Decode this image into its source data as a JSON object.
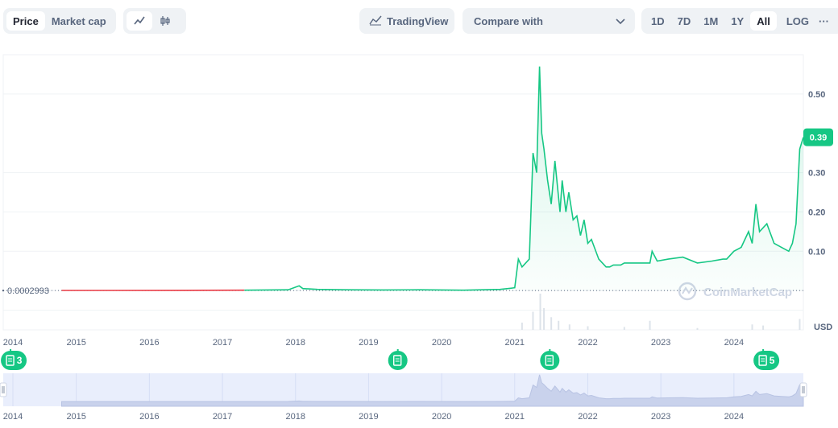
{
  "toolbar": {
    "metric_tabs": [
      "Price",
      "Market cap"
    ],
    "active_metric": "Price",
    "chart_style_icons": [
      "line-chart-icon",
      "candlestick-icon"
    ],
    "tradingview_label": "TradingView",
    "compare_label": "Compare with",
    "range_tabs": [
      "1D",
      "7D",
      "1M",
      "1Y",
      "All"
    ],
    "active_range": "All",
    "log_label": "LOG",
    "more_label": "···"
  },
  "colors": {
    "line": "#16c784",
    "early_line": "#ea3943",
    "price_badge": "#16c784",
    "navigator_bg": "#e9eefc",
    "grid": "#eff2f5"
  },
  "chart_data": {
    "type": "area",
    "currency": "USD",
    "current_price_label": "0.39",
    "start_price_label": "0.0002993",
    "watermark": "CoinMarketCap",
    "y_ticks": [
      "0.10",
      "0.20",
      "0.30",
      "0.50"
    ],
    "x_ticks": [
      "2014",
      "2015",
      "2016",
      "2017",
      "2018",
      "2019",
      "2020",
      "2021",
      "2022",
      "2023",
      "2024"
    ],
    "ylim": [
      -0.1,
      0.6
    ],
    "xlim": [
      2014.0,
      2024.95
    ],
    "series": [
      {
        "x": [
          2014.8,
          2015.5,
          2016.5,
          2017.3,
          2017.9,
          2018.05,
          2018.1,
          2018.3,
          2018.7,
          2019.2,
          2019.7,
          2020.3,
          2020.8,
          2021.0,
          2021.05,
          2021.1,
          2021.2,
          2021.25,
          2021.3,
          2021.34,
          2021.37,
          2021.4,
          2021.45,
          2021.5,
          2021.55,
          2021.62,
          2021.65,
          2021.7,
          2021.74,
          2021.8,
          2021.85,
          2021.9,
          2021.95,
          2022.0,
          2022.05,
          2022.15,
          2022.25,
          2022.3,
          2022.35,
          2022.45,
          2022.5,
          2022.7,
          2022.85,
          2022.88,
          2022.95,
          2023.1,
          2023.3,
          2023.5,
          2023.7,
          2023.85,
          2023.9,
          2024.0,
          2024.1,
          2024.2,
          2024.25,
          2024.3,
          2024.35,
          2024.45,
          2024.55,
          2024.65,
          2024.75,
          2024.8,
          2024.85,
          2024.9,
          2024.95
        ],
        "y": [
          0.0002993,
          0.0003,
          0.0004,
          0.001,
          0.002,
          0.012,
          0.005,
          0.003,
          0.002,
          0.0015,
          0.002,
          0.001,
          0.003,
          0.007,
          0.08,
          0.06,
          0.08,
          0.35,
          0.3,
          0.57,
          0.4,
          0.36,
          0.28,
          0.22,
          0.33,
          0.2,
          0.28,
          0.2,
          0.25,
          0.18,
          0.19,
          0.14,
          0.18,
          0.12,
          0.13,
          0.08,
          0.06,
          0.06,
          0.065,
          0.065,
          0.07,
          0.07,
          0.07,
          0.1,
          0.075,
          0.08,
          0.085,
          0.07,
          0.075,
          0.08,
          0.08,
          0.1,
          0.11,
          0.15,
          0.12,
          0.22,
          0.15,
          0.17,
          0.12,
          0.11,
          0.1,
          0.12,
          0.17,
          0.36,
          0.39
        ]
      }
    ],
    "volume": {
      "x": [
        2021.1,
        2021.25,
        2021.35,
        2021.4,
        2021.5,
        2021.6,
        2021.75,
        2022.0,
        2022.5,
        2022.85,
        2023.5,
        2024.25,
        2024.4,
        2024.9
      ],
      "v": [
        0.2,
        0.5,
        1.0,
        0.6,
        0.35,
        0.25,
        0.15,
        0.1,
        0.08,
        0.25,
        0.05,
        0.15,
        0.12,
        0.3
      ]
    },
    "news_markers": [
      {
        "x": 2014.1,
        "label": "3"
      },
      {
        "x": 2019.4,
        "label": ""
      },
      {
        "x": 2021.48,
        "label": ""
      },
      {
        "x": 2024.4,
        "label": "5"
      }
    ]
  }
}
